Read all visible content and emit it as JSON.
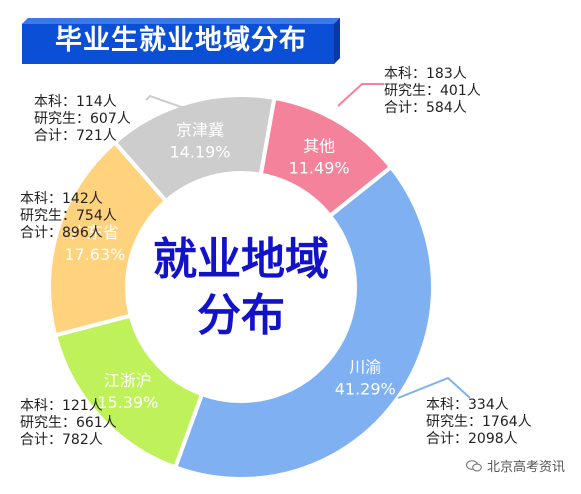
{
  "chart_data": {
    "type": "pie",
    "title": "毕业生就业地域分布",
    "center_label": [
      "就业地域",
      "分布"
    ],
    "slices": [
      {
        "name": "其他",
        "percent": "11.49%",
        "value": 11.49,
        "color": "#f4829a",
        "details": {
          "undergrad": "本科：183人",
          "grad": "研究生：401人",
          "total": "合计：584人"
        }
      },
      {
        "name": "川渝",
        "percent": "41.29%",
        "value": 41.29,
        "color": "#7fb1f2",
        "details": {
          "undergrad": "本科：334人",
          "grad": "研究生：1764人",
          "total": "合计：2098人"
        }
      },
      {
        "name": "江浙沪",
        "percent": "15.39%",
        "value": 15.39,
        "color": "#bff25a",
        "details": {
          "undergrad": "本科：121人",
          "grad": "研究生：661人",
          "total": "合计：782人"
        }
      },
      {
        "name": "广东省",
        "percent": "17.63%",
        "value": 17.63,
        "color": "#ffd27d",
        "details": {
          "undergrad": "本科：142人",
          "grad": "研究生：754人",
          "total": "合计：896人"
        }
      },
      {
        "name": "京津冀",
        "percent": "14.19%",
        "value": 14.19,
        "color": "#cdcdcd",
        "details": {
          "undergrad": "本科：114人",
          "grad": "研究生：607人",
          "total": "合计：721人"
        }
      }
    ]
  },
  "watermark": "北京高考资讯"
}
